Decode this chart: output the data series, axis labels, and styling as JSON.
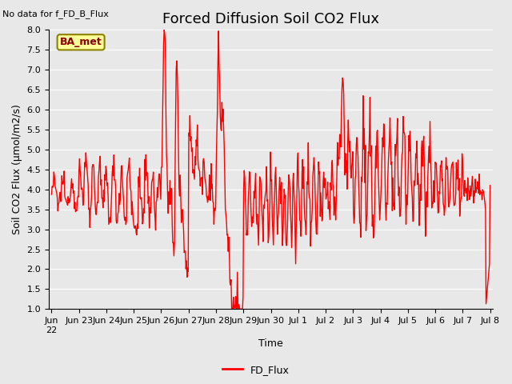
{
  "title": "Forced Diffusion Soil CO2 Flux",
  "no_data_label": "No data for f_FD_B_Flux",
  "ylabel": "Soil CO2 Flux (μmol/m2/s)",
  "xlabel": "Time",
  "legend_label": "FD_Flux",
  "ba_met_label": "BA_met",
  "ylim": [
    1.0,
    8.0
  ],
  "yticks": [
    1.0,
    1.5,
    2.0,
    2.5,
    3.0,
    3.5,
    4.0,
    4.5,
    5.0,
    5.5,
    6.0,
    6.5,
    7.0,
    7.5,
    8.0
  ],
  "line_color": "#FF0000",
  "line_width": 1.0,
  "plot_bg_color": "#E8E8E8",
  "fig_bg_color": "#E8E8E8",
  "title_fontsize": 13,
  "label_fontsize": 9,
  "tick_fontsize": 8,
  "ba_met_bg": "#FFFF99",
  "ba_met_border": "#8B8000",
  "tick_labels": [
    "Jun 23",
    "Jun 24",
    "Jun 25",
    "Jun 26",
    "Jun 27",
    "Jun 28",
    "Jun 29",
    "Jun 30",
    "Jul 1",
    "Jul 2",
    "Jul 3",
    "Jul 4",
    "Jul 5",
    "Jul 6",
    "Jul 7",
    "Jul 8"
  ],
  "first_label": "Jun\n22"
}
